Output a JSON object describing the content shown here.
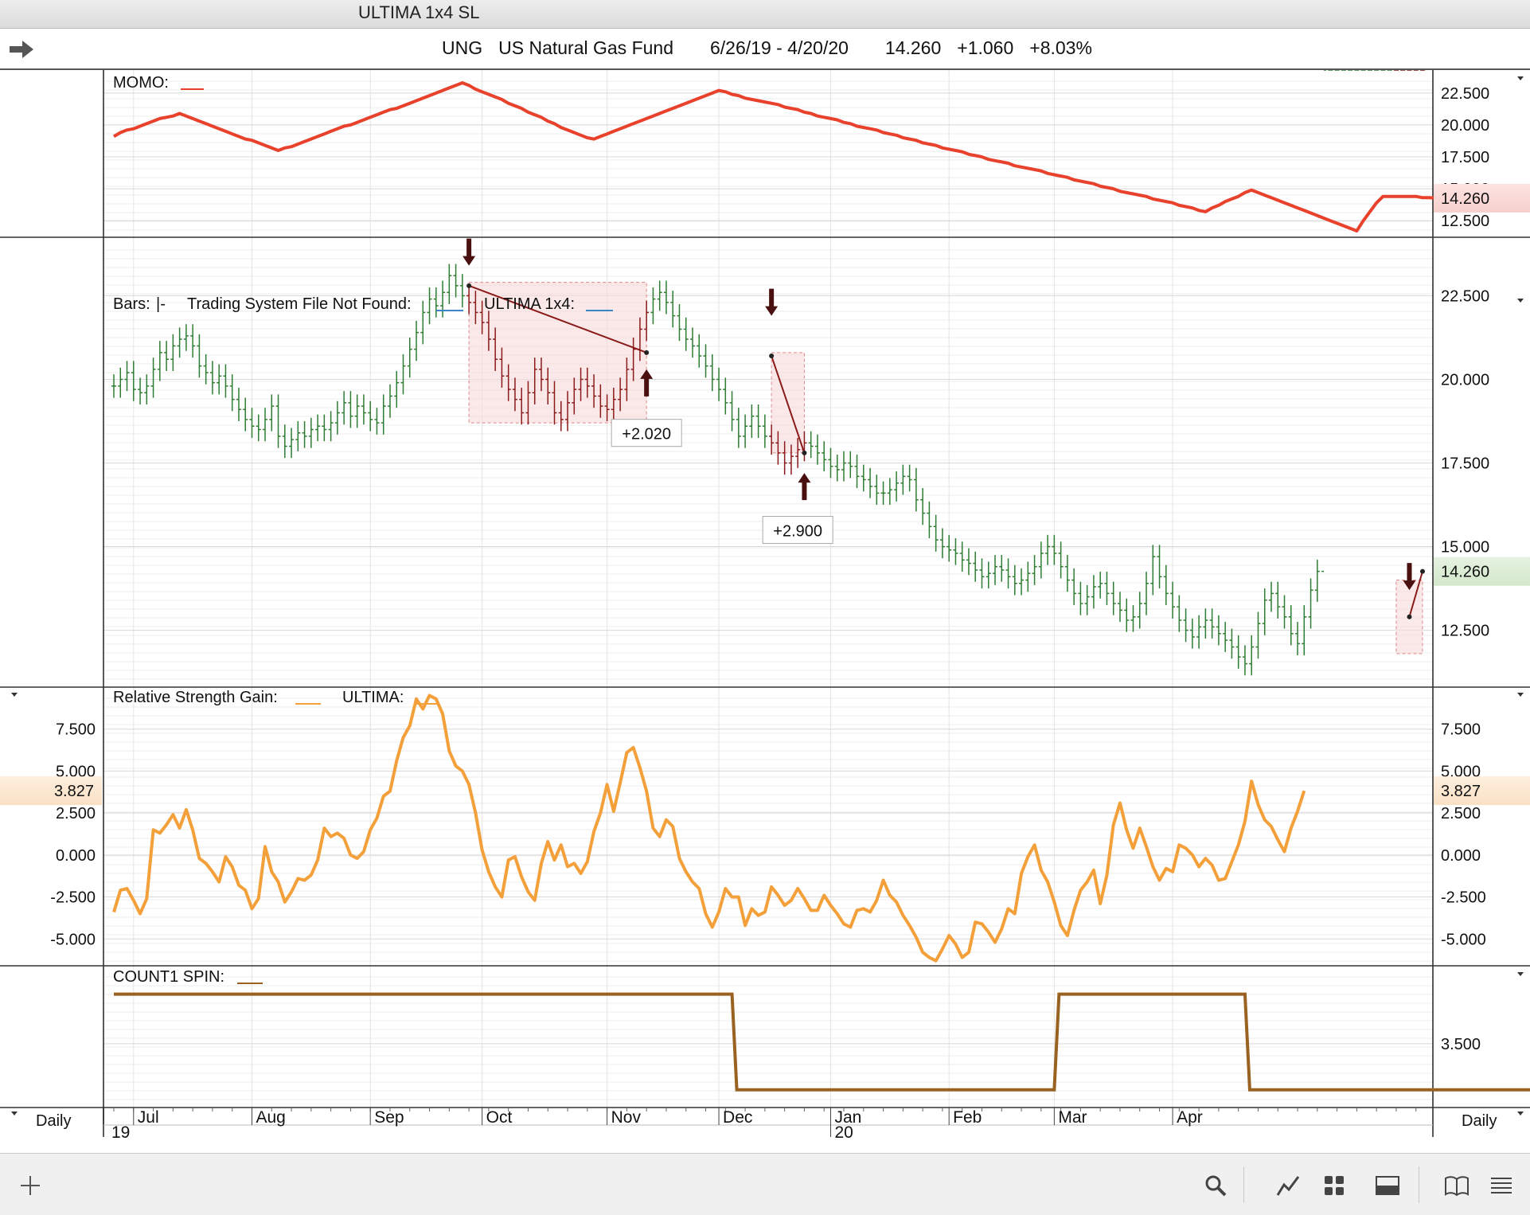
{
  "window": {
    "title": "ULTIMA 1x4 SL"
  },
  "header": {
    "symbol": "UNG",
    "name": "US Natural Gas Fund",
    "date_range": "6/26/19 - 4/20/20",
    "last": "14.260",
    "change": "+1.060",
    "change_pct": "+8.03%"
  },
  "panes": {
    "momo": {
      "legend": "MOMO:",
      "ticks": [
        "22.500",
        "20.000",
        "17.500",
        "15.000",
        "12.500"
      ],
      "tick_values": [
        22.5,
        20.0,
        17.5,
        15.0,
        12.5
      ],
      "ylim": [
        11.2,
        24.3
      ],
      "current_value": "14.260",
      "line_color": "#e8412c"
    },
    "bars": {
      "legend_bars": "Bars:",
      "legend_bars_marker": "|-",
      "legend_system": "Trading System File Not Found:",
      "legend_ultima": "ULTIMA 1x4:",
      "ticks": [
        "22.500",
        "20.000",
        "17.500",
        "15.000",
        "12.500"
      ],
      "tick_values": [
        22.5,
        20.0,
        17.5,
        15.0,
        12.5
      ],
      "ylim": [
        10.8,
        24.2
      ],
      "current_value": "14.260",
      "trades": [
        {
          "label": "+2.020"
        },
        {
          "label": "+2.900"
        }
      ],
      "bar_color": "#2e7d32",
      "trade_color": "#8b1a1a"
    },
    "rsg": {
      "legend_rsg": "Relative Strength Gain:",
      "legend_ultima": "ULTIMA:",
      "ticks": [
        "7.500",
        "5.000",
        "2.500",
        "0.000",
        "-2.500",
        "-5.000"
      ],
      "tick_values": [
        7.5,
        5.0,
        2.5,
        0.0,
        -2.5,
        -5.0
      ],
      "ylim": [
        -6.6,
        10.0
      ],
      "current_value": "3.827",
      "line_color": "#f4a03a"
    },
    "spin": {
      "legend": "COUNT1 SPIN:",
      "ticks": [
        "3.500"
      ],
      "tick_values": [
        3.5
      ],
      "ylim": [
        2.6,
        4.6
      ],
      "high_value": 4.2,
      "low_value": 2.85,
      "line_color": "#9a6220"
    }
  },
  "x_axis": {
    "months": [
      "Jul",
      "Aug",
      "Sep",
      "Oct",
      "Nov",
      "Dec",
      "Jan",
      "Feb",
      "Mar",
      "Apr"
    ],
    "years": [
      "19",
      "20"
    ],
    "period_left": "Daily",
    "period_right": "Daily"
  },
  "series": {
    "momo": [
      19.1,
      19.4,
      19.6,
      19.7,
      19.9,
      20.1,
      20.3,
      20.5,
      20.6,
      20.7,
      20.9,
      20.7,
      20.5,
      20.3,
      20.1,
      19.9,
      19.7,
      19.5,
      19.3,
      19.1,
      18.9,
      18.8,
      18.6,
      18.4,
      18.2,
      18.0,
      18.2,
      18.3,
      18.5,
      18.7,
      18.9,
      19.1,
      19.3,
      19.5,
      19.7,
      19.9,
      20.0,
      20.2,
      20.4,
      20.6,
      20.8,
      21.0,
      21.2,
      21.3,
      21.5,
      21.7,
      21.9,
      22.1,
      22.3,
      22.5,
      22.7,
      22.9,
      23.1,
      23.3,
      23.1,
      22.8,
      22.6,
      22.4,
      22.2,
      22.0,
      21.7,
      21.5,
      21.3,
      21.0,
      20.8,
      20.6,
      20.3,
      20.1,
      19.8,
      19.6,
      19.4,
      19.2,
      19.0,
      18.9,
      19.1,
      19.3,
      19.5,
      19.7,
      19.9,
      20.1,
      20.3,
      20.5,
      20.7,
      20.9,
      21.1,
      21.3,
      21.5,
      21.7,
      21.9,
      22.1,
      22.3,
      22.5,
      22.7,
      22.6,
      22.4,
      22.3,
      22.1,
      22.0,
      21.9,
      21.8,
      21.7,
      21.6,
      21.4,
      21.3,
      21.2,
      21.0,
      20.9,
      20.7,
      20.6,
      20.5,
      20.4,
      20.2,
      20.1,
      19.9,
      19.8,
      19.7,
      19.6,
      19.4,
      19.3,
      19.2,
      19.0,
      18.9,
      18.8,
      18.6,
      18.5,
      18.4,
      18.2,
      18.1,
      18.0,
      17.9,
      17.7,
      17.6,
      17.5,
      17.3,
      17.2,
      17.1,
      17.0,
      16.8,
      16.7,
      16.6,
      16.5,
      16.4,
      16.2,
      16.1,
      16.0,
      15.9,
      15.7,
      15.6,
      15.5,
      15.4,
      15.2,
      15.1,
      15.0,
      14.8,
      14.7,
      14.6,
      14.5,
      14.4,
      14.2,
      14.1,
      14.0,
      13.9,
      13.7,
      13.6,
      13.5,
      13.3,
      13.2,
      13.5,
      13.7,
      14.0,
      14.2,
      14.4,
      14.7,
      14.9,
      14.7,
      14.5,
      14.3,
      14.1,
      13.9,
      13.7,
      13.5,
      13.3,
      13.1,
      12.9,
      12.7,
      12.5,
      12.3,
      12.1,
      11.9,
      11.7,
      12.5,
      13.2,
      13.9,
      14.4,
      14.4,
      14.4,
      14.4,
      14.4,
      14.4,
      14.3,
      14.3,
      14.26
    ],
    "bars_close": [
      19.8,
      20.0,
      20.2,
      19.7,
      19.6,
      19.8,
      20.3,
      20.8,
      20.6,
      21.0,
      21.2,
      21.3,
      21.0,
      20.4,
      20.2,
      19.9,
      20.1,
      19.8,
      19.4,
      19.1,
      18.8,
      18.6,
      18.5,
      18.8,
      19.2,
      18.3,
      18.0,
      18.2,
      18.4,
      18.3,
      18.5,
      18.6,
      18.5,
      18.7,
      19.0,
      19.3,
      18.9,
      19.2,
      19.0,
      18.8,
      18.7,
      19.2,
      19.5,
      19.9,
      20.4,
      20.9,
      21.4,
      22.0,
      22.4,
      22.2,
      22.6,
      23.1,
      22.8,
      22.5,
      22.3,
      22.0,
      21.7,
      21.2,
      20.6,
      20.1,
      19.7,
      19.4,
      19.0,
      19.6,
      20.3,
      20.0,
      19.6,
      19.0,
      18.8,
      19.3,
      19.7,
      20.0,
      19.8,
      19.5,
      19.2,
      19.1,
      19.4,
      19.7,
      20.3,
      20.9,
      21.5,
      22.0,
      22.4,
      22.6,
      22.3,
      21.9,
      21.5,
      21.2,
      21.0,
      20.7,
      20.4,
      20.0,
      19.7,
      19.3,
      18.8,
      18.3,
      18.6,
      18.9,
      18.6,
      18.3,
      18.1,
      17.8,
      17.5,
      17.7,
      17.9,
      18.1,
      18.0,
      17.8,
      17.6,
      17.4,
      17.3,
      17.5,
      17.4,
      17.1,
      17.0,
      16.8,
      16.6,
      16.6,
      16.7,
      16.9,
      17.1,
      17.0,
      16.4,
      16.0,
      15.6,
      15.2,
      15.0,
      14.9,
      14.8,
      14.6,
      14.5,
      14.3,
      14.1,
      14.2,
      14.4,
      14.3,
      14.1,
      13.9,
      14.0,
      14.2,
      14.4,
      14.8,
      15.0,
      14.8,
      14.4,
      14.0,
      13.6,
      13.3,
      13.5,
      13.8,
      13.9,
      13.6,
      13.3,
      13.1,
      12.8,
      12.9,
      13.3,
      13.9,
      14.7,
      14.1,
      13.6,
      13.2,
      12.8,
      12.5,
      12.3,
      12.6,
      12.8,
      12.6,
      12.4,
      12.2,
      12.0,
      11.7,
      11.5,
      12.0,
      12.7,
      13.4,
      13.6,
      13.2,
      12.9,
      12.4,
      12.1,
      12.9,
      13.7,
      14.26
    ],
    "rsg": [
      -3.4,
      -2.1,
      -2.0,
      -2.7,
      -3.5,
      -2.6,
      1.5,
      1.3,
      1.8,
      2.4,
      1.6,
      2.7,
      1.5,
      -0.2,
      -0.5,
      -1.0,
      -1.6,
      -0.1,
      -0.7,
      -1.8,
      -2.1,
      -3.2,
      -2.6,
      0.5,
      -1.0,
      -1.6,
      -2.8,
      -2.2,
      -1.4,
      -1.5,
      -1.2,
      -0.3,
      1.6,
      1.1,
      1.3,
      1.0,
      0.0,
      -0.2,
      0.2,
      1.5,
      2.2,
      3.5,
      3.8,
      5.6,
      7.0,
      7.7,
      9.3,
      8.7,
      9.5,
      9.3,
      8.4,
      6.2,
      5.3,
      5.0,
      4.2,
      2.5,
      0.3,
      -1.0,
      -1.9,
      -2.5,
      -0.3,
      -0.1,
      -1.3,
      -2.2,
      -2.7,
      -0.5,
      0.8,
      -0.3,
      0.6,
      -0.7,
      -0.5,
      -1.1,
      -0.4,
      1.4,
      2.5,
      4.2,
      2.6,
      4.3,
      6.1,
      6.4,
      5.2,
      3.8,
      1.6,
      1.1,
      2.1,
      1.7,
      -0.2,
      -1.0,
      -1.6,
      -2.0,
      -3.5,
      -4.3,
      -3.4,
      -2.0,
      -2.5,
      -2.5,
      -4.2,
      -3.2,
      -3.6,
      -3.4,
      -1.9,
      -2.4,
      -3.0,
      -2.7,
      -2.0,
      -2.6,
      -3.3,
      -3.3,
      -2.4,
      -3.0,
      -3.5,
      -4.1,
      -4.3,
      -3.3,
      -3.2,
      -3.4,
      -2.7,
      -1.5,
      -2.4,
      -2.8,
      -3.6,
      -4.2,
      -4.9,
      -5.8,
      -6.1,
      -6.3,
      -5.6,
      -4.8,
      -5.3,
      -6.1,
      -5.8,
      -4.0,
      -4.1,
      -4.6,
      -5.2,
      -4.4,
      -3.2,
      -3.5,
      -1.1,
      -0.1,
      0.6,
      -0.9,
      -1.6,
      -2.8,
      -4.2,
      -4.8,
      -3.3,
      -2.1,
      -1.6,
      -0.9,
      -2.9,
      -1.2,
      1.8,
      3.1,
      1.5,
      0.4,
      1.6,
      0.5,
      -0.7,
      -1.5,
      -0.8,
      -1.0,
      0.6,
      0.4,
      0.0,
      -0.7,
      -0.2,
      -0.6,
      -1.5,
      -1.4,
      -0.4,
      0.6,
      2.0,
      4.4,
      3.0,
      2.1,
      1.7,
      0.9,
      0.2,
      1.6,
      2.6,
      3.827
    ],
    "spin_switches": [
      0,
      94,
      143,
      172,
      286,
      316
    ]
  }
}
